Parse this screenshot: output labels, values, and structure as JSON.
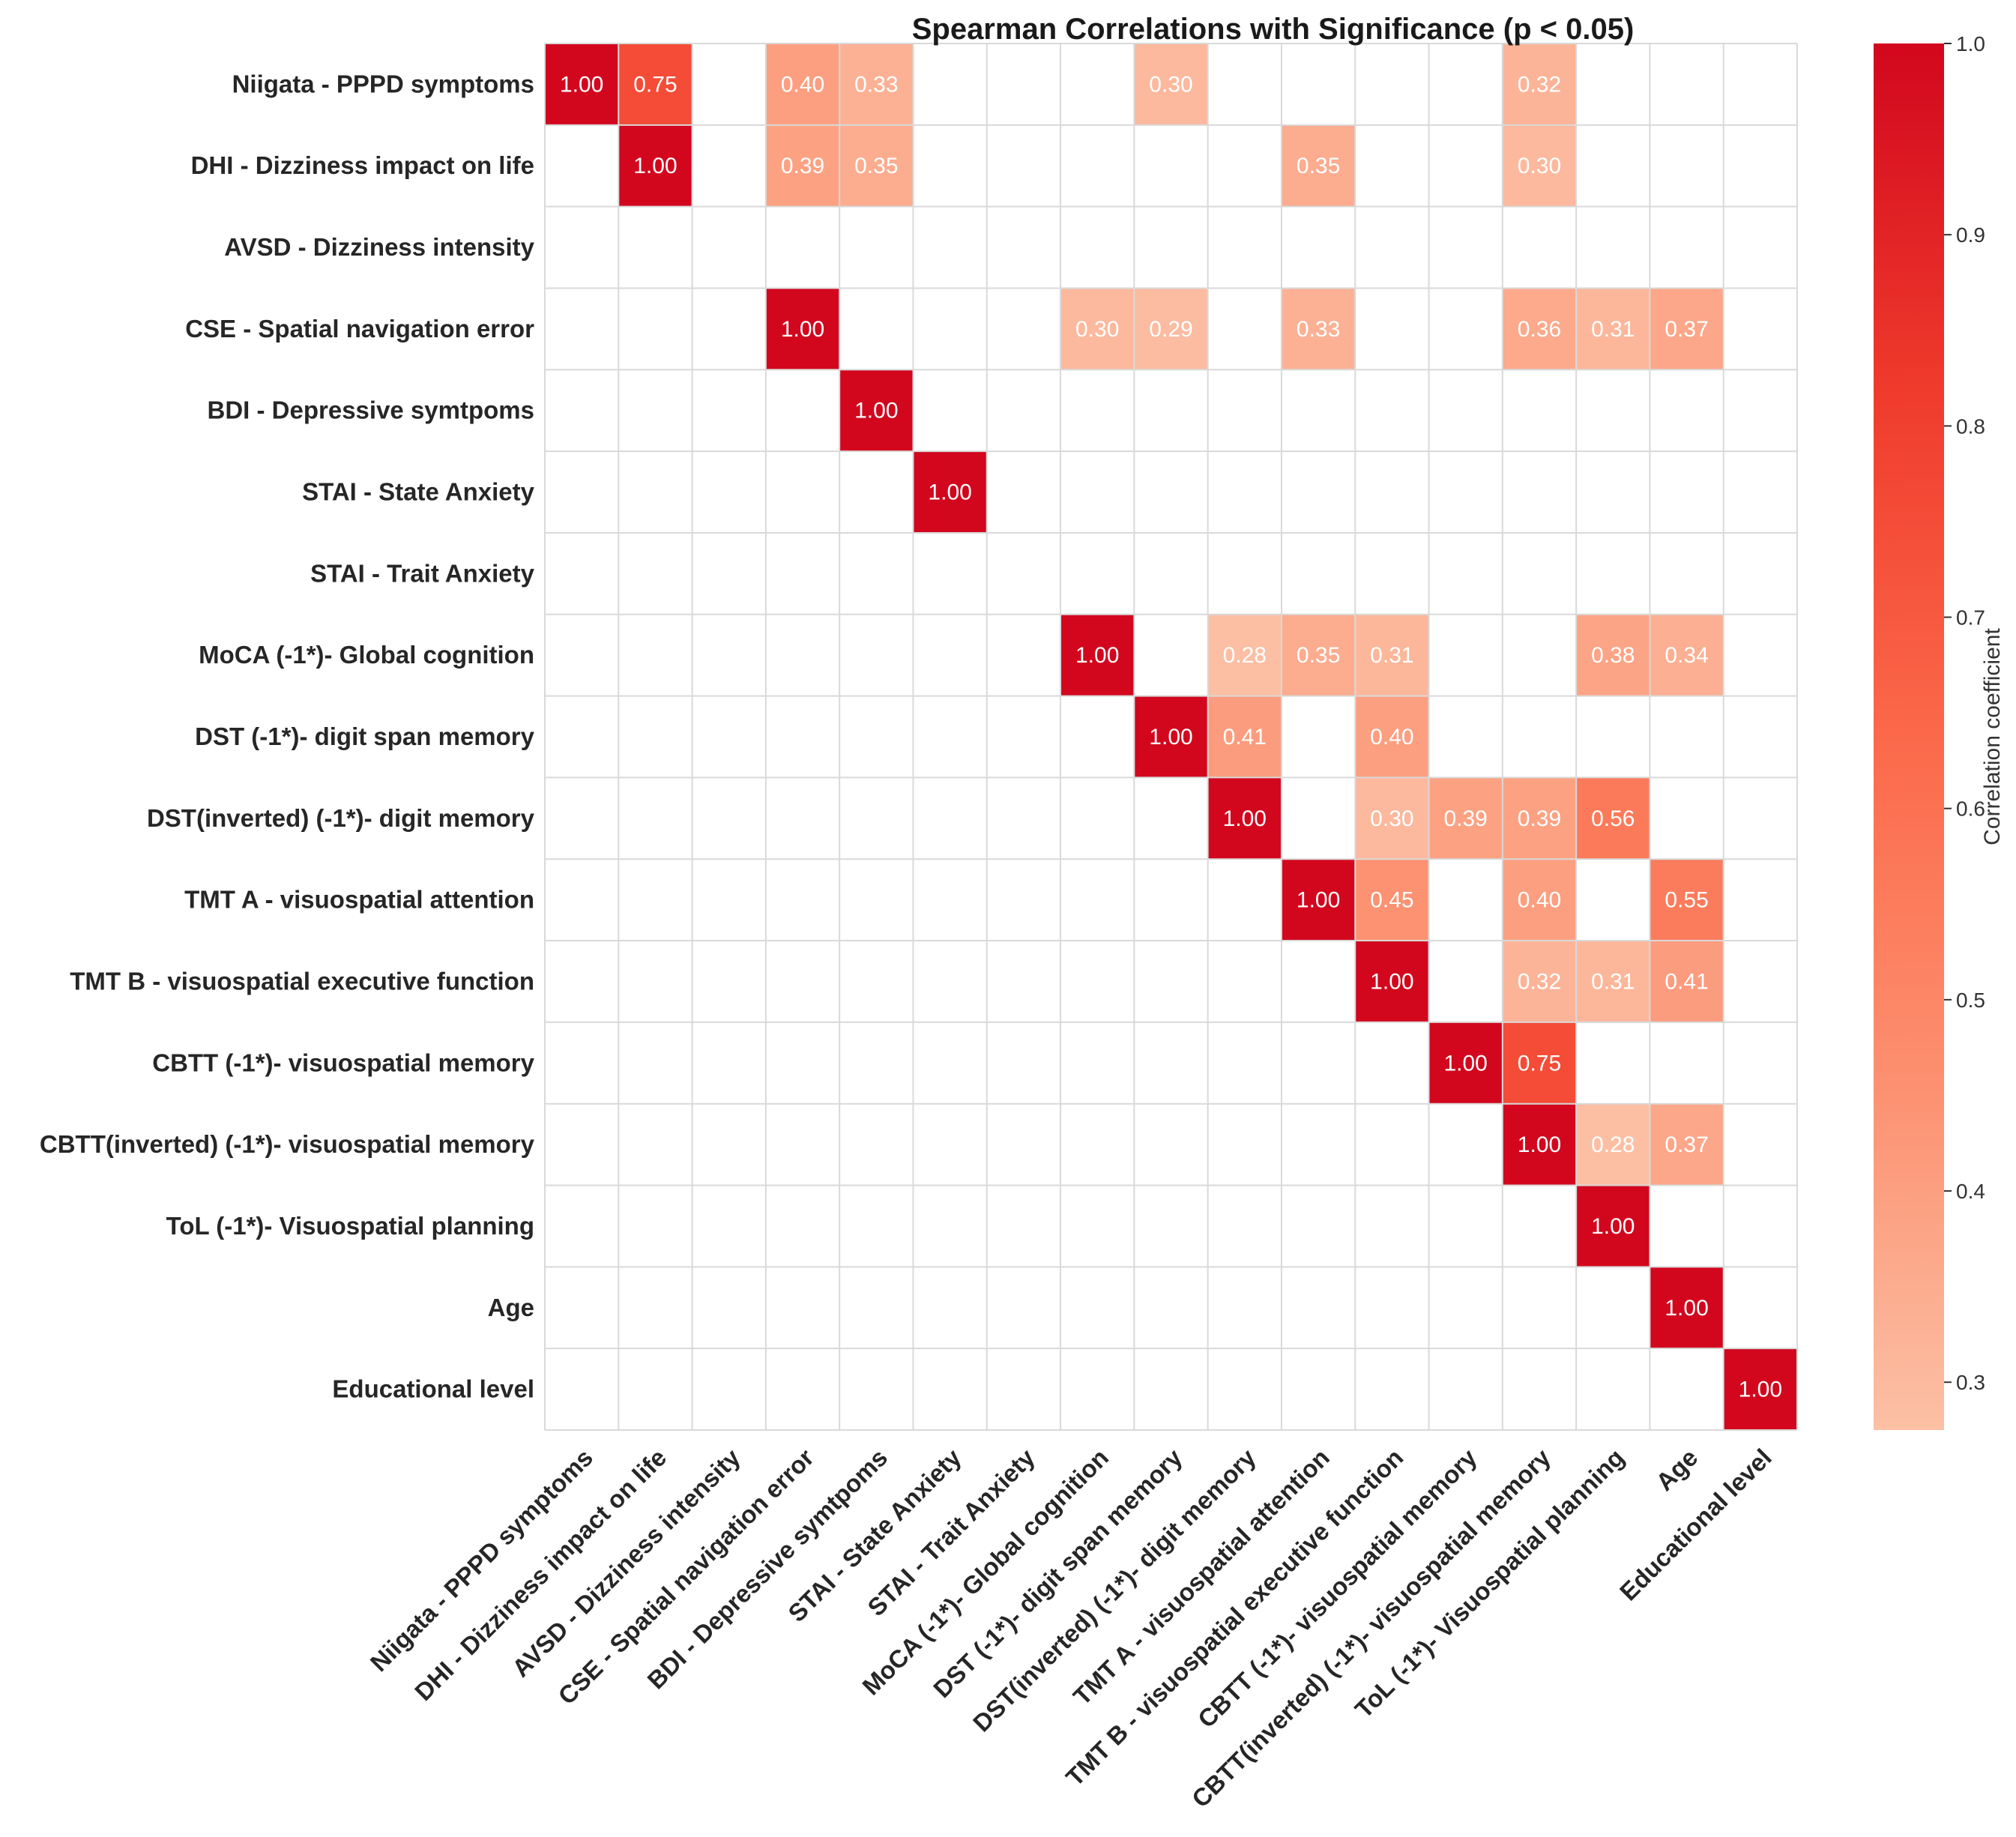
{
  "chart_data": {
    "type": "heatmap",
    "title": "Spearman Correlations with Significance (p < 0.05)",
    "xlabel": "",
    "ylabel": "",
    "annotation_format": "2 decimals; only significant cells (p < 0.05) shown, others blank",
    "grid": true,
    "labels": [
      "Niigata - PPPD symptoms",
      "DHI - Dizziness impact on life",
      "AVSD - Dizziness intensity",
      "CSE - Spatial navigation error",
      "BDI - Depressive symtpoms",
      "STAI - State Anxiety",
      "STAI - Trait Anxiety",
      "MoCA (-1*)- Global cognition",
      "DST (-1*)- digit span memory",
      "DST(inverted) (-1*)- digit memory",
      "TMT A - visuospatial attention ",
      "TMT B - visuospatial executive function",
      "CBTT (-1*)- visuospatial memory",
      "CBTT(inverted) (-1*)- visuospatial memory",
      "ToL (-1*)- Visuospatial planning",
      "Age",
      "Educational level"
    ],
    "cells": [
      {
        "row": 0,
        "col": 0,
        "value": 1.0
      },
      {
        "row": 0,
        "col": 1,
        "value": 0.75
      },
      {
        "row": 0,
        "col": 3,
        "value": 0.4
      },
      {
        "row": 0,
        "col": 4,
        "value": 0.33
      },
      {
        "row": 0,
        "col": 8,
        "value": 0.3
      },
      {
        "row": 0,
        "col": 13,
        "value": 0.32
      },
      {
        "row": 1,
        "col": 1,
        "value": 1.0
      },
      {
        "row": 1,
        "col": 3,
        "value": 0.39
      },
      {
        "row": 1,
        "col": 4,
        "value": 0.35
      },
      {
        "row": 1,
        "col": 10,
        "value": 0.35
      },
      {
        "row": 1,
        "col": 13,
        "value": 0.3
      },
      {
        "row": 3,
        "col": 3,
        "value": 1.0
      },
      {
        "row": 3,
        "col": 7,
        "value": 0.3
      },
      {
        "row": 3,
        "col": 8,
        "value": 0.29
      },
      {
        "row": 3,
        "col": 10,
        "value": 0.33
      },
      {
        "row": 3,
        "col": 13,
        "value": 0.36
      },
      {
        "row": 3,
        "col": 14,
        "value": 0.31
      },
      {
        "row": 3,
        "col": 15,
        "value": 0.37
      },
      {
        "row": 4,
        "col": 4,
        "value": 1.0
      },
      {
        "row": 5,
        "col": 5,
        "value": 1.0
      },
      {
        "row": 7,
        "col": 7,
        "value": 1.0
      },
      {
        "row": 7,
        "col": 9,
        "value": 0.28
      },
      {
        "row": 7,
        "col": 10,
        "value": 0.35
      },
      {
        "row": 7,
        "col": 11,
        "value": 0.31
      },
      {
        "row": 7,
        "col": 14,
        "value": 0.38
      },
      {
        "row": 7,
        "col": 15,
        "value": 0.34
      },
      {
        "row": 8,
        "col": 8,
        "value": 1.0
      },
      {
        "row": 8,
        "col": 9,
        "value": 0.41
      },
      {
        "row": 8,
        "col": 11,
        "value": 0.4
      },
      {
        "row": 9,
        "col": 9,
        "value": 1.0
      },
      {
        "row": 9,
        "col": 11,
        "value": 0.3
      },
      {
        "row": 9,
        "col": 12,
        "value": 0.39
      },
      {
        "row": 9,
        "col": 13,
        "value": 0.39
      },
      {
        "row": 9,
        "col": 14,
        "value": 0.56
      },
      {
        "row": 10,
        "col": 10,
        "value": 1.0
      },
      {
        "row": 10,
        "col": 11,
        "value": 0.45
      },
      {
        "row": 10,
        "col": 13,
        "value": 0.4
      },
      {
        "row": 10,
        "col": 15,
        "value": 0.55
      },
      {
        "row": 11,
        "col": 11,
        "value": 1.0
      },
      {
        "row": 11,
        "col": 13,
        "value": 0.32
      },
      {
        "row": 11,
        "col": 14,
        "value": 0.31
      },
      {
        "row": 11,
        "col": 15,
        "value": 0.41
      },
      {
        "row": 12,
        "col": 12,
        "value": 1.0
      },
      {
        "row": 12,
        "col": 13,
        "value": 0.75
      },
      {
        "row": 13,
        "col": 13,
        "value": 1.0
      },
      {
        "row": 13,
        "col": 14,
        "value": 0.28
      },
      {
        "row": 13,
        "col": 15,
        "value": 0.37
      },
      {
        "row": 14,
        "col": 14,
        "value": 1.0
      },
      {
        "row": 15,
        "col": 15,
        "value": 1.0
      },
      {
        "row": 16,
        "col": 16,
        "value": 1.0
      }
    ],
    "colorbar": {
      "label": "Correlation coefficient",
      "range": [
        0.275,
        1.0
      ],
      "ticks": [
        "0.3",
        "0.4",
        "0.5",
        "0.6",
        "0.7",
        "0.8",
        "0.9",
        "1.0"
      ],
      "tick_values": [
        0.3,
        0.4,
        0.5,
        0.6,
        0.7,
        0.8,
        0.9,
        1.0
      ],
      "colormap": "Reds",
      "colors": [
        "#fcc0a5",
        "#fc9070",
        "#fb694a",
        "#ef3b2c",
        "#d2071e"
      ]
    }
  }
}
